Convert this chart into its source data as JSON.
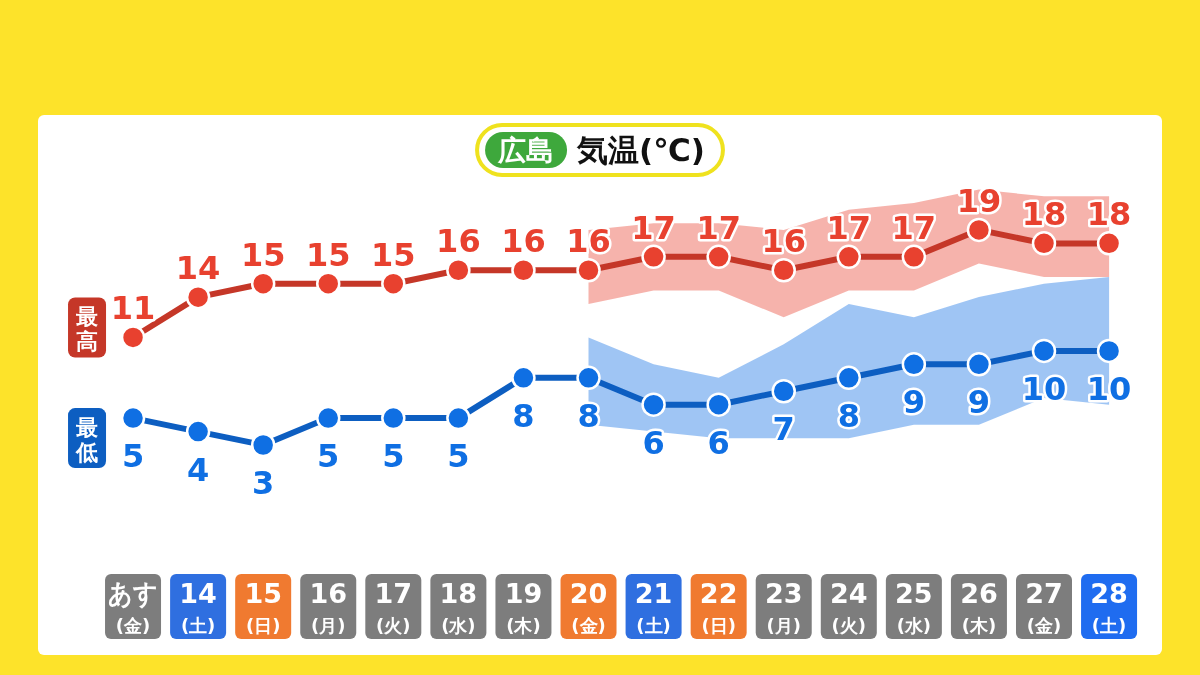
{
  "chart_data": {
    "type": "line",
    "title": "広島",
    "subtitle": "気温(℃)",
    "categories": [
      "あす(金)",
      "14(土)",
      "15(日)",
      "16(月)",
      "17(火)",
      "18(水)",
      "19(木)",
      "20(金)",
      "21(土)",
      "22(日)",
      "23(月)",
      "24(火)",
      "25(水)",
      "26(木)",
      "27(金)",
      "28(土)"
    ],
    "series": [
      {
        "name": "最高",
        "color": "#e8412f",
        "values": [
          11,
          14,
          15,
          15,
          15,
          16,
          16,
          16,
          17,
          17,
          16,
          17,
          17,
          19,
          18,
          18
        ],
        "lower": [
          null,
          null,
          null,
          null,
          null,
          null,
          null,
          13.5,
          14.5,
          14.5,
          12.5,
          14.5,
          14.5,
          16.5,
          15.5,
          15.5
        ],
        "upper": [
          null,
          null,
          null,
          null,
          null,
          null,
          null,
          19,
          19.5,
          19.5,
          19,
          20.5,
          21,
          22,
          21.5,
          21.5
        ]
      },
      {
        "name": "最低",
        "color": "#0f6fe3",
        "values": [
          5,
          4,
          3,
          5,
          5,
          5,
          8,
          8,
          6,
          6,
          7,
          8,
          9,
          9,
          10,
          10
        ],
        "lower": [
          null,
          null,
          null,
          null,
          null,
          null,
          null,
          4.5,
          4,
          3.5,
          3.5,
          3.5,
          4.5,
          4.5,
          6.5,
          6
        ],
        "upper": [
          null,
          null,
          null,
          null,
          null,
          null,
          null,
          11,
          9,
          8,
          10.5,
          13.5,
          12.5,
          14,
          15,
          15.5
        ]
      }
    ],
    "tick_labels": "x",
    "marker": "circle",
    "line_style": "solid",
    "data_labels": true
  }
}
